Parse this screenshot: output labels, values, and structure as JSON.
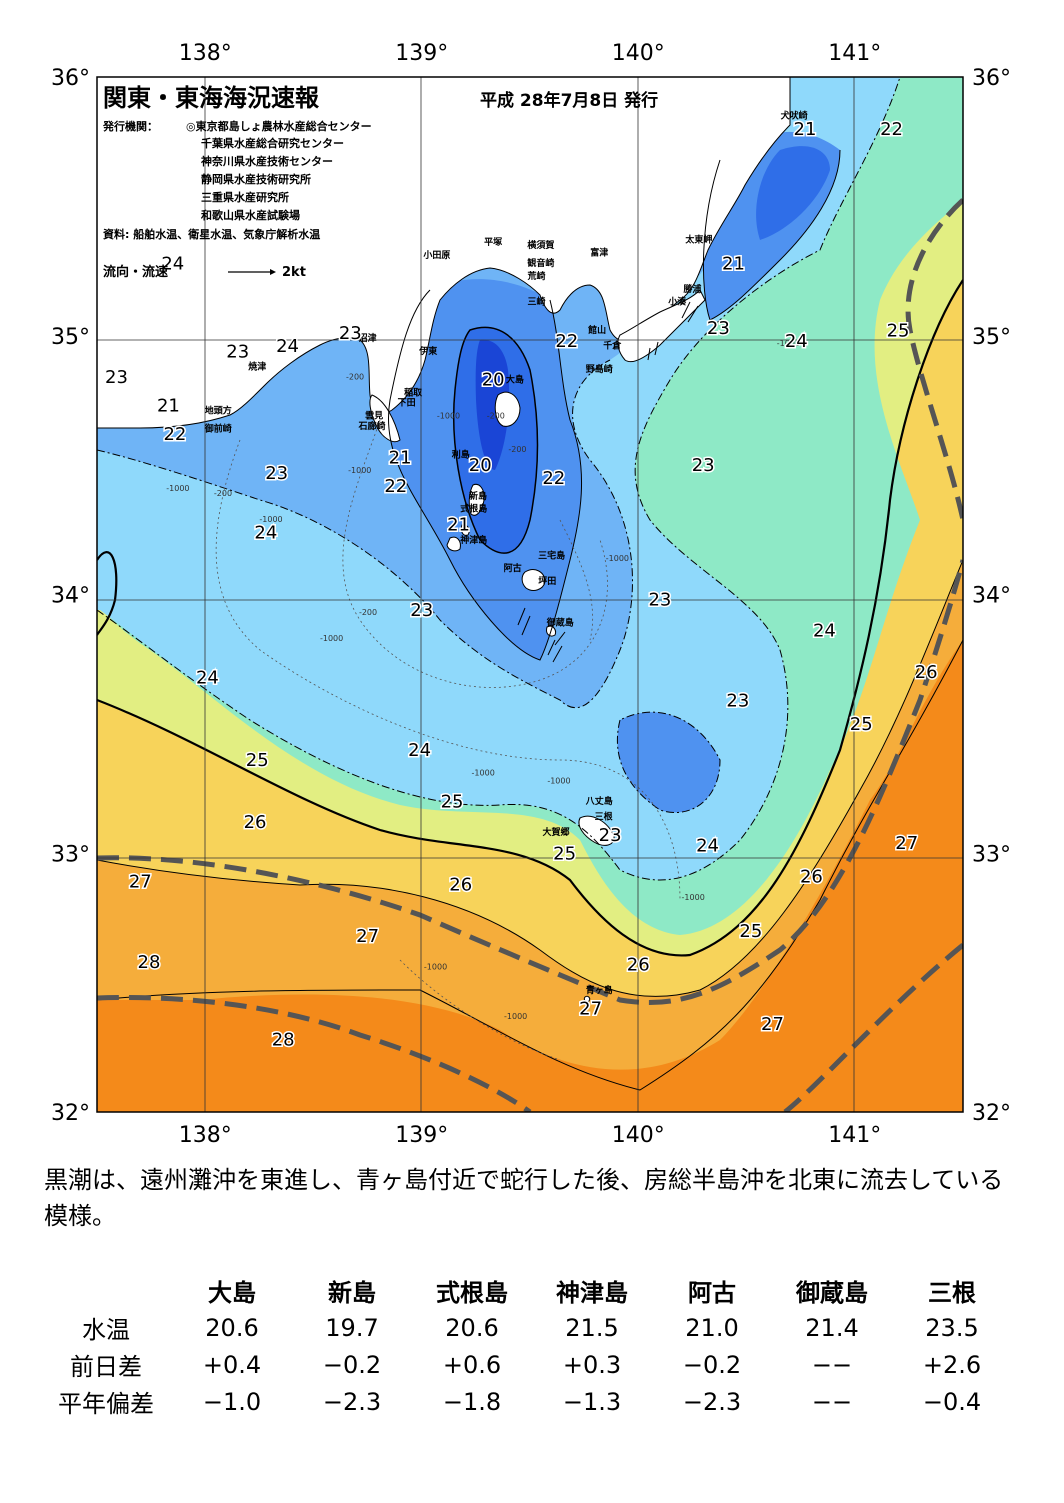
{
  "title": "関東・東海海況速報",
  "issue_date": "平成 28年7月8日 発行",
  "issuers_label": "発行機関：",
  "issuers": [
    "◎東京都島しょ農林水産総合センター",
    "千葉県水産総合研究センター",
    "神奈川県水産技術センター",
    "静岡県水産技術研究所",
    "三重県水産研究所",
    "和歌山県水産試験場"
  ],
  "sources": "資料: 船舶水温、衛星水温、気象庁解析水温",
  "legend": {
    "label": "流向・流速",
    "scale": "2kt"
  },
  "axes": {
    "lon_labels": [
      "138°",
      "139°",
      "140°",
      "141°"
    ],
    "lat_labels": [
      "36°",
      "35°",
      "34°",
      "33°",
      "32°"
    ]
  },
  "isotherm_labels": [
    {
      "text": "21",
      "lon": 140.77,
      "lat": 35.8
    },
    {
      "text": "22",
      "lon": 141.17,
      "lat": 35.8
    },
    {
      "text": "21",
      "lon": 140.44,
      "lat": 35.28
    },
    {
      "text": "23",
      "lon": 140.37,
      "lat": 35.03
    },
    {
      "text": "24",
      "lon": 140.73,
      "lat": 34.98
    },
    {
      "text": "25",
      "lon": 141.2,
      "lat": 35.02
    },
    {
      "text": "24",
      "lon": 137.85,
      "lat": 35.28
    },
    {
      "text": "23",
      "lon": 138.67,
      "lat": 35.01
    },
    {
      "text": "24",
      "lon": 138.38,
      "lat": 34.96
    },
    {
      "text": "23",
      "lon": 138.15,
      "lat": 34.94
    },
    {
      "text": "23",
      "lon": 137.59,
      "lat": 34.84
    },
    {
      "text": "21",
      "lon": 137.83,
      "lat": 34.73
    },
    {
      "text": "22",
      "lon": 137.86,
      "lat": 34.62
    },
    {
      "text": "20",
      "lon": 139.33,
      "lat": 34.83
    },
    {
      "text": "22",
      "lon": 139.67,
      "lat": 34.98
    },
    {
      "text": "21",
      "lon": 138.9,
      "lat": 34.53
    },
    {
      "text": "22",
      "lon": 138.88,
      "lat": 34.42
    },
    {
      "text": "23",
      "lon": 138.33,
      "lat": 34.47
    },
    {
      "text": "20",
      "lon": 139.27,
      "lat": 34.5
    },
    {
      "text": "22",
      "lon": 139.61,
      "lat": 34.45
    },
    {
      "text": "23",
      "lon": 140.3,
      "lat": 34.5
    },
    {
      "text": "24",
      "lon": 138.28,
      "lat": 34.24
    },
    {
      "text": "21",
      "lon": 139.17,
      "lat": 34.27
    },
    {
      "text": "23",
      "lon": 139.0,
      "lat": 33.94
    },
    {
      "text": "23",
      "lon": 140.1,
      "lat": 33.98
    },
    {
      "text": "24",
      "lon": 140.86,
      "lat": 33.86
    },
    {
      "text": "26",
      "lon": 141.33,
      "lat": 33.7
    },
    {
      "text": "24",
      "lon": 138.01,
      "lat": 33.68
    },
    {
      "text": "23",
      "lon": 140.46,
      "lat": 33.59
    },
    {
      "text": "25",
      "lon": 141.03,
      "lat": 33.5
    },
    {
      "text": "24",
      "lon": 138.99,
      "lat": 33.4
    },
    {
      "text": "25",
      "lon": 138.24,
      "lat": 33.36
    },
    {
      "text": "25",
      "lon": 139.14,
      "lat": 33.2
    },
    {
      "text": "26",
      "lon": 138.23,
      "lat": 33.12
    },
    {
      "text": "23",
      "lon": 139.87,
      "lat": 33.07
    },
    {
      "text": "25",
      "lon": 139.66,
      "lat": 33.0
    },
    {
      "text": "24",
      "lon": 140.32,
      "lat": 33.03
    },
    {
      "text": "27",
      "lon": 141.24,
      "lat": 33.04
    },
    {
      "text": "26",
      "lon": 140.8,
      "lat": 32.91
    },
    {
      "text": "27",
      "lon": 137.7,
      "lat": 32.89
    },
    {
      "text": "26",
      "lon": 139.18,
      "lat": 32.88
    },
    {
      "text": "27",
      "lon": 138.75,
      "lat": 32.68
    },
    {
      "text": "25",
      "lon": 140.52,
      "lat": 32.7
    },
    {
      "text": "28",
      "lon": 137.74,
      "lat": 32.58
    },
    {
      "text": "26",
      "lon": 140.0,
      "lat": 32.57
    },
    {
      "text": "27",
      "lon": 139.78,
      "lat": 32.4
    },
    {
      "text": "27",
      "lon": 140.62,
      "lat": 32.34
    },
    {
      "text": "28",
      "lon": 138.36,
      "lat": 32.28
    }
  ],
  "place_labels": [
    {
      "text": "犬吠崎",
      "lon": 140.72,
      "lat": 35.84
    },
    {
      "text": "太東岬",
      "lon": 140.28,
      "lat": 35.36
    },
    {
      "text": "勝浦",
      "lon": 140.25,
      "lat": 35.17
    },
    {
      "text": "小湊",
      "lon": 140.18,
      "lat": 35.12
    },
    {
      "text": "横須賀",
      "lon": 139.55,
      "lat": 35.34
    },
    {
      "text": "平塚",
      "lon": 139.33,
      "lat": 35.35
    },
    {
      "text": "観音崎",
      "lon": 139.55,
      "lat": 35.27
    },
    {
      "text": "荒崎",
      "lon": 139.53,
      "lat": 35.22
    },
    {
      "text": "富津",
      "lon": 139.82,
      "lat": 35.31
    },
    {
      "text": "三崎",
      "lon": 139.53,
      "lat": 35.12
    },
    {
      "text": "館山",
      "lon": 139.81,
      "lat": 35.01
    },
    {
      "text": "千倉",
      "lon": 139.88,
      "lat": 34.95
    },
    {
      "text": "野島崎",
      "lon": 139.82,
      "lat": 34.86
    },
    {
      "text": "大島",
      "lon": 139.43,
      "lat": 34.82
    },
    {
      "text": "小田原",
      "lon": 139.07,
      "lat": 35.3
    },
    {
      "text": "沼津",
      "lon": 138.75,
      "lat": 34.98
    },
    {
      "text": "伊東",
      "lon": 139.03,
      "lat": 34.93
    },
    {
      "text": "焼津",
      "lon": 138.24,
      "lat": 34.87
    },
    {
      "text": "稲取",
      "lon": 138.96,
      "lat": 34.77
    },
    {
      "text": "下田",
      "lon": 138.93,
      "lat": 34.73
    },
    {
      "text": "雲見",
      "lon": 138.78,
      "lat": 34.68
    },
    {
      "text": "石廊崎",
      "lon": 138.77,
      "lat": 34.64
    },
    {
      "text": "地頭方",
      "lon": 138.06,
      "lat": 34.7
    },
    {
      "text": "御前崎",
      "lon": 138.06,
      "lat": 34.63
    },
    {
      "text": "利島",
      "lon": 139.18,
      "lat": 34.53
    },
    {
      "text": "新島",
      "lon": 139.26,
      "lat": 34.37
    },
    {
      "text": "式根島",
      "lon": 139.24,
      "lat": 34.32
    },
    {
      "text": "神津島",
      "lon": 139.24,
      "lat": 34.2
    },
    {
      "text": "三宅島",
      "lon": 139.6,
      "lat": 34.14
    },
    {
      "text": "阿古",
      "lon": 139.42,
      "lat": 34.09
    },
    {
      "text": "坪田",
      "lon": 139.58,
      "lat": 34.04
    },
    {
      "text": "御蔵島",
      "lon": 139.64,
      "lat": 33.88
    },
    {
      "text": "八丈島",
      "lon": 139.82,
      "lat": 33.19
    },
    {
      "text": "三根",
      "lon": 139.84,
      "lat": 33.13
    },
    {
      "text": "大賀郷",
      "lon": 139.62,
      "lat": 33.07
    },
    {
      "text": "青ヶ島",
      "lon": 139.82,
      "lat": 32.46
    }
  ],
  "depth_labels": [
    {
      "text": "-1000",
      "lon": 140.64,
      "lat": 34.96
    },
    {
      "text": "-200",
      "lon": 138.65,
      "lat": 34.83
    },
    {
      "text": "-1000",
      "lon": 139.07,
      "lat": 34.68
    },
    {
      "text": "-200",
      "lon": 139.3,
      "lat": 34.68
    },
    {
      "text": "-1000",
      "lon": 138.66,
      "lat": 34.47
    },
    {
      "text": "-1000",
      "lon": 137.82,
      "lat": 34.4
    },
    {
      "text": "-200",
      "lon": 138.04,
      "lat": 34.38
    },
    {
      "text": "-1000",
      "lon": 138.25,
      "lat": 34.28
    },
    {
      "text": "-200",
      "lon": 139.4,
      "lat": 34.55
    },
    {
      "text": "-1000",
      "lon": 139.85,
      "lat": 34.13
    },
    {
      "text": "-200",
      "lon": 138.71,
      "lat": 33.92
    },
    {
      "text": "-1000",
      "lon": 138.53,
      "lat": 33.82
    },
    {
      "text": "-1000",
      "lon": 139.23,
      "lat": 33.3
    },
    {
      "text": "-1000",
      "lon": 139.58,
      "lat": 33.27
    },
    {
      "text": "-1000",
      "lon": 140.2,
      "lat": 32.82
    },
    {
      "text": "-1000",
      "lon": 139.01,
      "lat": 32.55
    },
    {
      "text": "-1000",
      "lon": 139.38,
      "lat": 32.36
    }
  ],
  "temperature_scale_colors": {
    "19": "#1a45d6",
    "20": "#2f6ee8",
    "21": "#4f92f0",
    "22": "#6fb4f6",
    "23": "#8fd9fb",
    "24": "#8ee9c6",
    "25": "#e2ee82",
    "26": "#f7d35a",
    "27": "#f5ad3b",
    "28": "#f48a1a"
  },
  "kuroshio_axis_color": "#555555",
  "observations": {
    "stations": [
      "大島",
      "新島",
      "式根島",
      "神津島",
      "阿古",
      "御蔵島",
      "三根"
    ],
    "rows": [
      {
        "label": "水温",
        "values": [
          "20.6",
          "19.7",
          "20.6",
          "21.5",
          "21.0",
          "21.4",
          "23.5"
        ]
      },
      {
        "label": "前日差",
        "values": [
          "+0.4",
          "−0.2",
          "+0.6",
          "+0.3",
          "−0.2",
          "−−",
          "+2.6"
        ]
      },
      {
        "label": "平年偏差",
        "values": [
          "−1.0",
          "−2.3",
          "−1.8",
          "−1.3",
          "−2.3",
          "−−",
          "−0.4"
        ]
      }
    ]
  },
  "description": "黒潮は、遠州灘沖を東進し、青ヶ島付近で蛇行した後、房総半島沖を北東に流去している模様。"
}
